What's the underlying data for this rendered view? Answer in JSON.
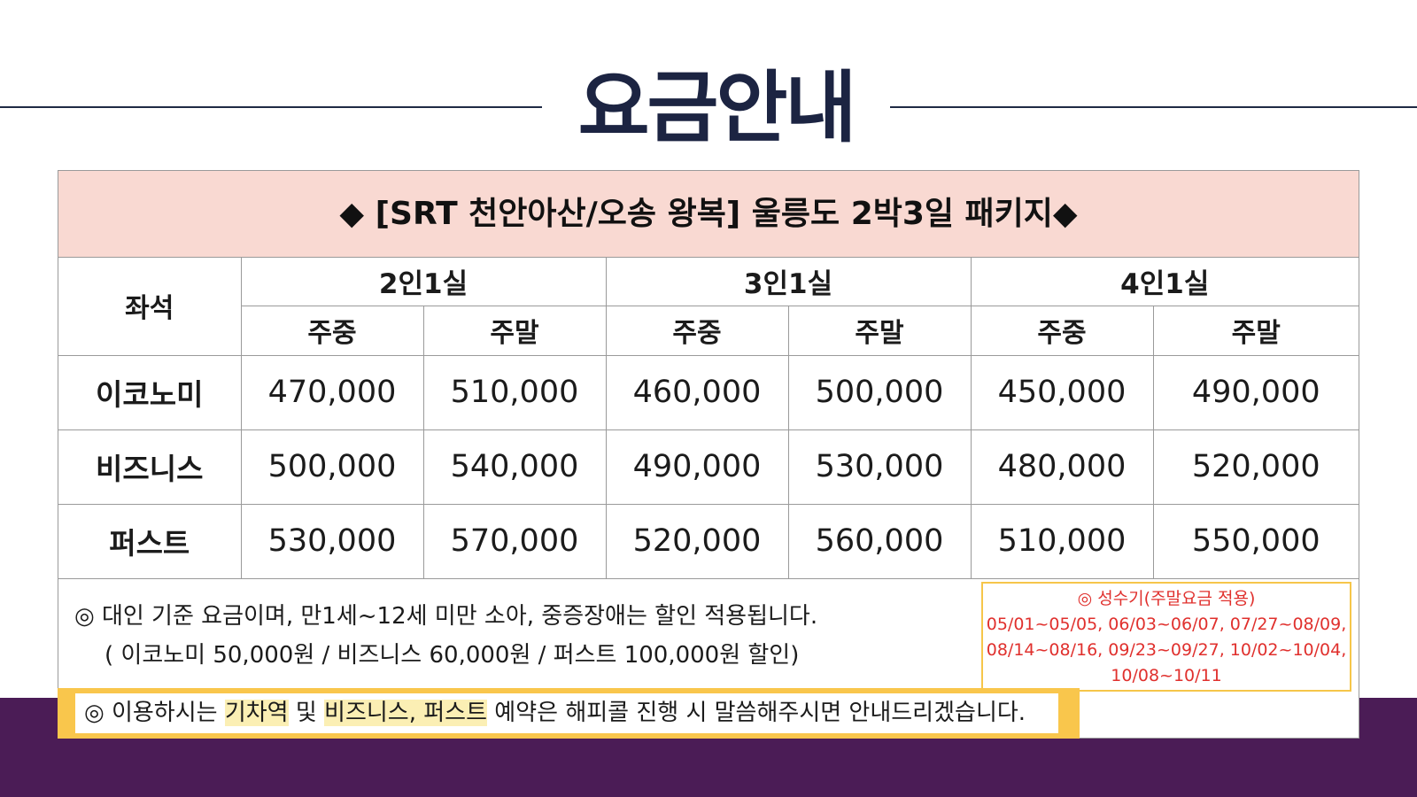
{
  "title": "요금안내",
  "package_title": "◆ [SRT 천안아산/오송 왕복] 울릉도 2박3일 패키지◆",
  "table": {
    "seat_header": "좌석",
    "rooms": [
      "2인1실",
      "3인1실",
      "4인1실"
    ],
    "weekday_label": "주중",
    "weekend_label": "주말",
    "rows": [
      {
        "seat": "이코노미",
        "prices": [
          "470,000",
          "510,000",
          "460,000",
          "500,000",
          "450,000",
          "490,000"
        ]
      },
      {
        "seat": "비즈니스",
        "prices": [
          "500,000",
          "540,000",
          "490,000",
          "530,000",
          "480,000",
          "520,000"
        ]
      },
      {
        "seat": "퍼스트",
        "prices": [
          "530,000",
          "570,000",
          "520,000",
          "560,000",
          "510,000",
          "550,000"
        ]
      }
    ]
  },
  "notes": {
    "discount_line1": "◎ 대인 기준 요금이며, 만1세~12세 미만 소아, 중증장애는 할인 적용됩니다.",
    "discount_line2": "( 이코노미 50,000원 / 비즈니스 60,000원 / 퍼스트 100,000원 할인)"
  },
  "peak_season": {
    "title": "◎ 성수기(주말요금 적용)",
    "line1": "05/01~05/05, 06/03~06/07,  07/27~08/09,",
    "line2": "08/14~08/16, 09/23~09/27, 10/02~10/04,",
    "line3": "10/08~10/11"
  },
  "reservation": {
    "part1": "◎ 이용하시는 ",
    "highlight1": "기차역",
    "part2": " 및 ",
    "highlight2": "비즈니스, 퍼스트",
    "part3": " 예약은 해피콜 진행 시 말씀해주시면 안내드리겠습니다."
  },
  "colors": {
    "title": "#1c2442",
    "header_bg": "#f9d9d2",
    "weekday": "#2b55d6",
    "weekend": "#ee3b1f",
    "peak_text": "#e0302d",
    "accent_yellow": "#f9c64c",
    "bottom_band": "#4b1c56"
  }
}
